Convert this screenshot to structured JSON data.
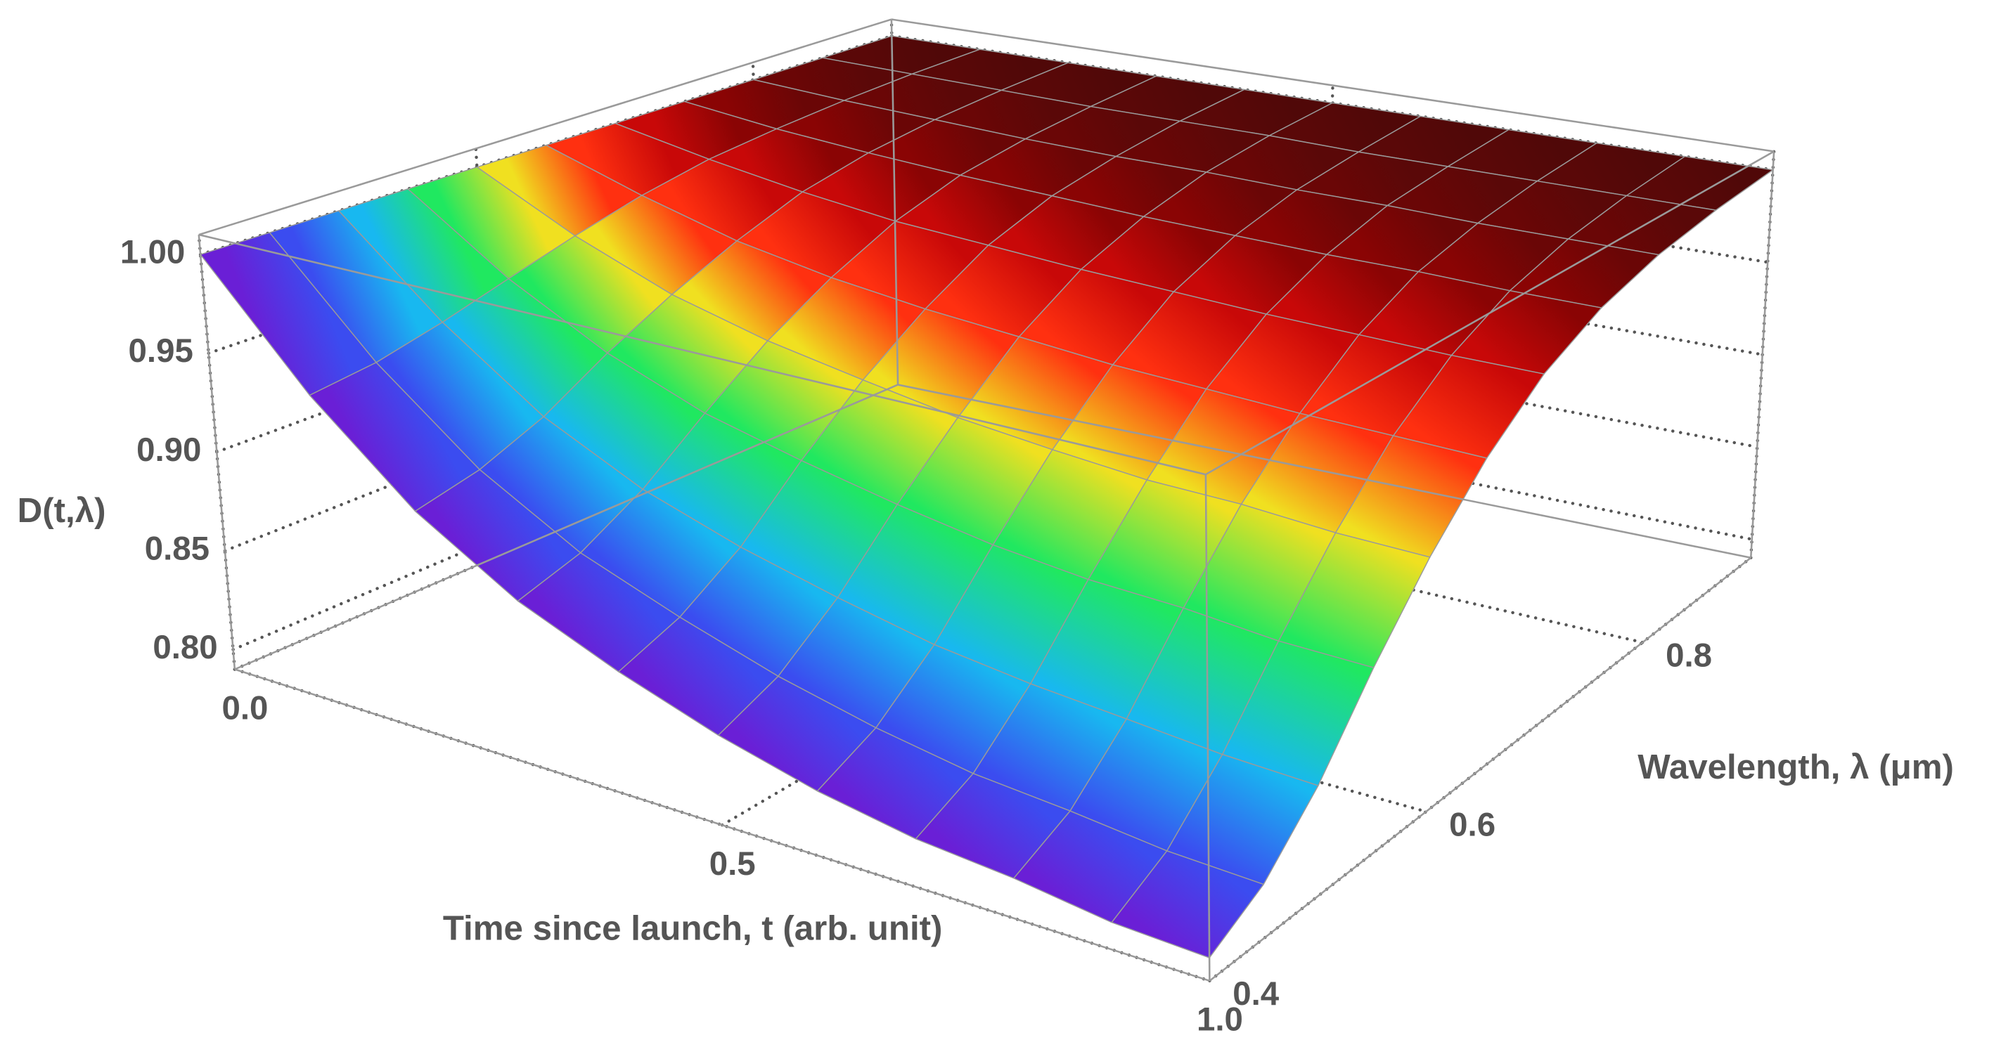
{
  "chart_data": {
    "type": "surface",
    "xlabel": "Time since launch, t (arb. unit)",
    "ylabel": "Wavelength, λ (μm)",
    "zlabel": "D(t,λ)",
    "x": [
      0,
      0.1,
      0.2,
      0.3,
      0.4,
      0.5,
      0.6,
      0.7,
      0.8,
      0.9,
      1.0
    ],
    "y": [
      0.4,
      0.45,
      0.5,
      0.55,
      0.6,
      0.65,
      0.7,
      0.75,
      0.8,
      0.85,
      0.9
    ],
    "z": [
      [
        1,
        0.942,
        0.898,
        0.868,
        0.848,
        0.832,
        0.82,
        0.812,
        0.808,
        0.802,
        0.8
      ],
      [
        1,
        0.946,
        0.905,
        0.877,
        0.859,
        0.844,
        0.833,
        0.825,
        0.821,
        0.816,
        0.814
      ],
      [
        1,
        0.954,
        0.918,
        0.894,
        0.878,
        0.866,
        0.856,
        0.85,
        0.846,
        0.842,
        0.84
      ],
      [
        1,
        0.964,
        0.937,
        0.918,
        0.906,
        0.896,
        0.888,
        0.883,
        0.881,
        0.877,
        0.876
      ],
      [
        1,
        0.974,
        0.954,
        0.941,
        0.932,
        0.924,
        0.919,
        0.915,
        0.914,
        0.911,
        0.91
      ],
      [
        1,
        0.983,
        0.969,
        0.96,
        0.954,
        0.95,
        0.946,
        0.944,
        0.942,
        0.941,
        0.94
      ],
      [
        1,
        0.99,
        0.982,
        0.976,
        0.973,
        0.97,
        0.968,
        0.966,
        0.965,
        0.964,
        0.964
      ],
      [
        1,
        0.994,
        0.99,
        0.987,
        0.985,
        0.983,
        0.982,
        0.981,
        0.981,
        0.98,
        0.98
      ],
      [
        1,
        0.997,
        0.995,
        0.993,
        0.992,
        0.992,
        0.991,
        0.991,
        0.99,
        0.99,
        0.99
      ],
      [
        1,
        0.999,
        0.998,
        0.997,
        0.997,
        0.997,
        0.996,
        0.996,
        0.996,
        0.996,
        0.996
      ],
      [
        1,
        1,
        1,
        1,
        1,
        1,
        1,
        1,
        1,
        1,
        1
      ]
    ],
    "row_colors": [
      "#6a1fd6",
      "#3b4cf0",
      "#18b8f0",
      "#20e860",
      "#f0e020",
      "#ff3010",
      "#c80808",
      "#8a0404",
      "#6a0606",
      "#5a0808",
      "#500808"
    ],
    "mesh_color": "#9a9a9a",
    "xlim": [
      0,
      1
    ],
    "ylim": [
      0.4,
      0.9
    ],
    "zlim": [
      0.79,
      1.01
    ],
    "xticks": [
      {
        "value": 0,
        "label": "0.0"
      },
      0.5,
      {
        "value": 1,
        "label": "1.0"
      }
    ],
    "yticks": [
      0.4,
      0.6,
      0.8
    ],
    "zticks": [
      {
        "value": 0.8,
        "label": "0.80"
      },
      0.85,
      {
        "value": 0.9,
        "label": "0.90"
      },
      0.95,
      {
        "value": 1,
        "label": "1.00"
      }
    ],
    "grid": true
  }
}
